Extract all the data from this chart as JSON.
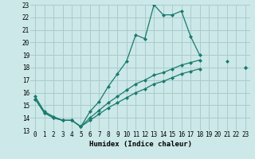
{
  "xlabel": "Humidex (Indice chaleur)",
  "xlim": [
    -0.5,
    23.5
  ],
  "ylim": [
    13,
    23
  ],
  "yticks": [
    13,
    14,
    15,
    16,
    17,
    18,
    19,
    20,
    21,
    22,
    23
  ],
  "xticks": [
    0,
    1,
    2,
    3,
    4,
    5,
    6,
    7,
    8,
    9,
    10,
    11,
    12,
    13,
    14,
    15,
    16,
    17,
    18,
    19,
    20,
    21,
    22,
    23
  ],
  "bg_color": "#cce8e8",
  "grid_color": "#aacccc",
  "line_color": "#1a7a6e",
  "line1_y": [
    15.7,
    14.5,
    14.1,
    13.8,
    13.8,
    13.3,
    14.5,
    15.3,
    16.5,
    17.5,
    18.5,
    20.6,
    20.3,
    23.0,
    22.2,
    22.2,
    22.5,
    20.5,
    19.0,
    null,
    null,
    18.5,
    null,
    null
  ],
  "line2_y": [
    15.5,
    14.4,
    14.0,
    13.8,
    13.8,
    13.3,
    14.0,
    14.6,
    15.2,
    15.7,
    16.2,
    16.7,
    17.0,
    17.4,
    17.6,
    17.9,
    18.2,
    18.4,
    18.6,
    null,
    null,
    null,
    null,
    18.0
  ],
  "line3_y": [
    15.5,
    14.4,
    14.0,
    13.8,
    13.8,
    13.3,
    13.8,
    14.3,
    14.8,
    15.2,
    15.6,
    16.0,
    16.3,
    16.7,
    16.9,
    17.2,
    17.5,
    17.7,
    17.9,
    null,
    null,
    null,
    null,
    18.0
  ]
}
